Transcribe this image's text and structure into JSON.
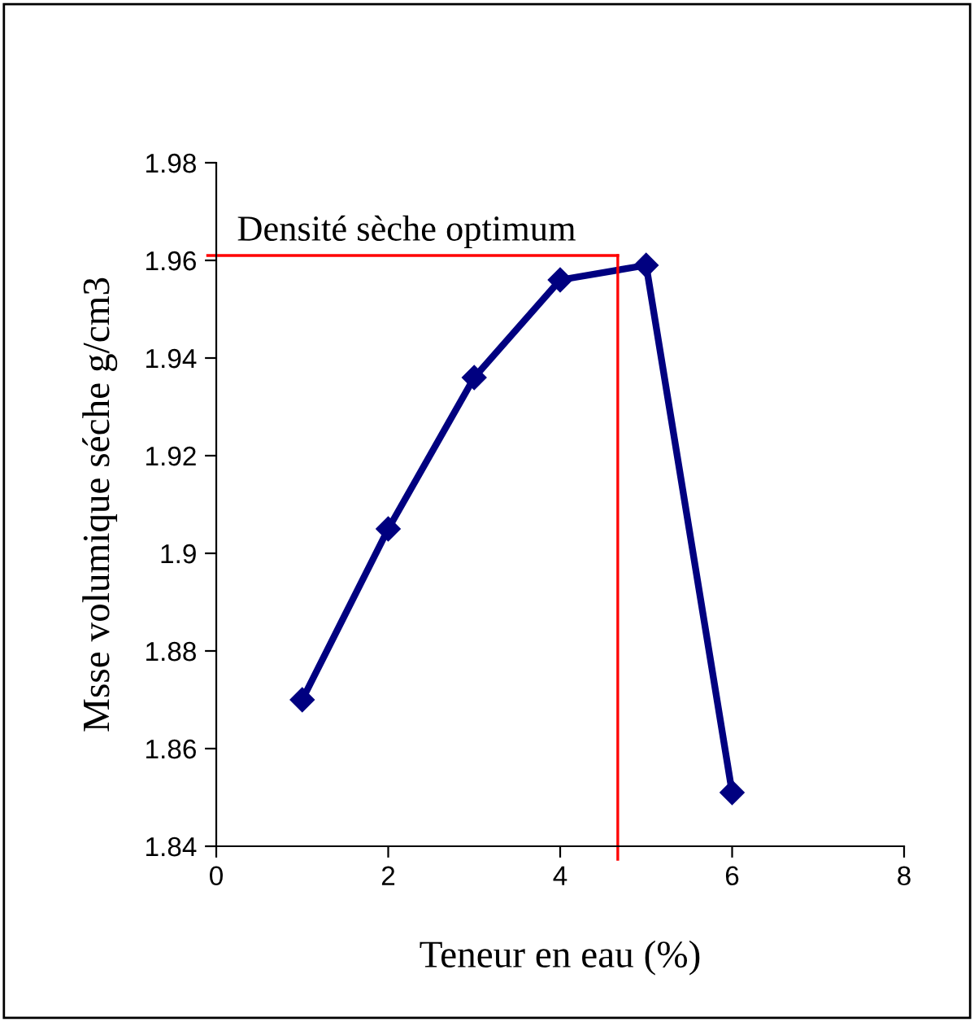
{
  "chart_data": {
    "type": "line",
    "xlabel": "Teneur en eau (%)",
    "ylabel": "Msse volumique séche g/cm3",
    "x": [
      1,
      2,
      3,
      4,
      5,
      6
    ],
    "series": [
      {
        "color": "#000080",
        "values": [
          1.87,
          1.905,
          1.936,
          1.956,
          1.959,
          1.851
        ]
      }
    ],
    "xlim": [
      0,
      8
    ],
    "xticks": [
      0,
      2,
      4,
      6,
      8
    ],
    "ylim": [
      1.84,
      1.98
    ],
    "yticks": [
      1.84,
      1.86,
      1.88,
      1.9,
      1.92,
      1.94,
      1.96,
      1.98
    ],
    "ref_lines": [
      {
        "axis": "x",
        "value": 4.67,
        "color": "#ff0000"
      },
      {
        "axis": "y",
        "value": 1.961,
        "color": "#ff0000"
      }
    ],
    "annotations": [
      "Densité sèche optimum"
    ],
    "marker": "diamond",
    "line_style": "solid",
    "grid": false,
    "legend": false
  }
}
